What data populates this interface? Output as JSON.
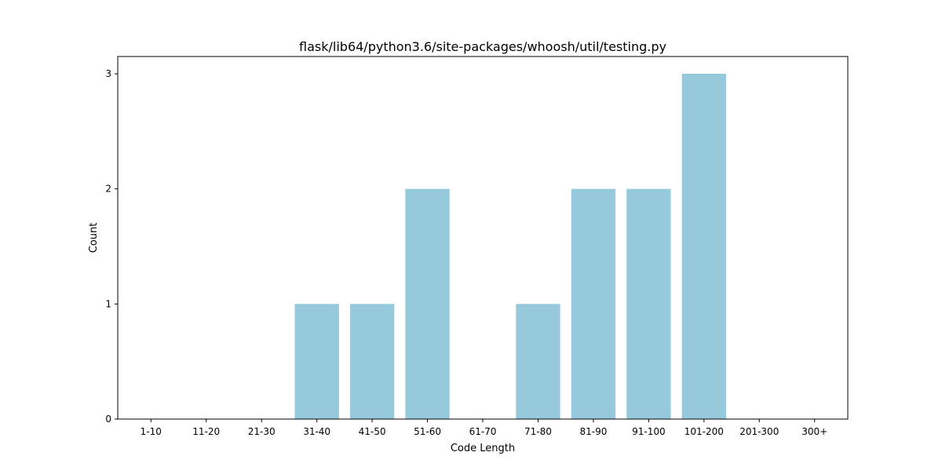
{
  "chart_data": {
    "type": "bar",
    "title": "flask/lib64/python3.6/site-packages/whoosh/util/testing.py",
    "xlabel": "Code Length",
    "ylabel": "Count",
    "categories": [
      "1-10",
      "11-20",
      "21-30",
      "31-40",
      "41-50",
      "51-60",
      "61-70",
      "71-80",
      "81-90",
      "91-100",
      "101-200",
      "201-300",
      "300+"
    ],
    "values": [
      0,
      0,
      0,
      1,
      1,
      2,
      0,
      1,
      2,
      2,
      3,
      0,
      0
    ],
    "ylim": [
      0,
      3.15
    ],
    "yticks": [
      0,
      1,
      2,
      3
    ],
    "bar_color": "#96c9dc",
    "grid": false,
    "legend": "none"
  }
}
